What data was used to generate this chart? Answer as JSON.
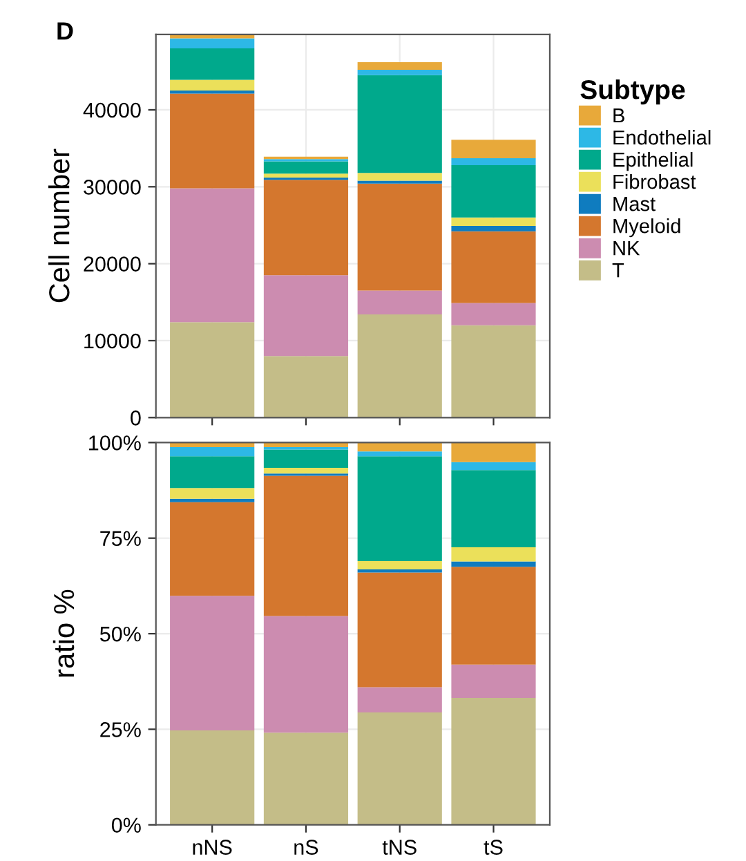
{
  "chart_data": [
    {
      "type": "bar",
      "stacked": true,
      "ylabel": "Cell number",
      "annotations": [
        "D"
      ],
      "categories": [
        null,
        null,
        null,
        null
      ],
      "legend_title": "Subtype",
      "legend": "right",
      "grid": true,
      "ylim": [
        0,
        49800
      ],
      "yticks": [
        0,
        10000,
        20000,
        30000,
        40000
      ],
      "series": [
        {
          "name": "T",
          "color": "#c4bd88",
          "values": [
            12400,
            8000,
            13400,
            12000
          ]
        },
        {
          "name": "NK",
          "color": "#cc8cb0",
          "values": [
            17400,
            10500,
            3100,
            2900
          ]
        },
        {
          "name": "Myeloid",
          "color": "#d4772e",
          "values": [
            12300,
            12400,
            13900,
            9300
          ]
        },
        {
          "name": "Mast",
          "color": "#0f7cbf",
          "values": [
            400,
            300,
            400,
            700
          ]
        },
        {
          "name": "Fibrobast",
          "color": "#ebe05a",
          "values": [
            1400,
            500,
            1000,
            1100
          ]
        },
        {
          "name": "Epithelial",
          "color": "#00a98c",
          "values": [
            4100,
            1600,
            12700,
            6800
          ]
        },
        {
          "name": "Endothelial",
          "color": "#2db8e6",
          "values": [
            1300,
            300,
            700,
            900
          ]
        },
        {
          "name": "B",
          "color": "#e8a93a",
          "values": [
            400,
            300,
            1000,
            2400
          ]
        }
      ]
    },
    {
      "type": "bar",
      "stacked": true,
      "ylabel": "ratio %",
      "categories": [
        "nNS",
        "nS",
        "tNS",
        "tS"
      ],
      "grid": true,
      "ylim": [
        0,
        100
      ],
      "yticks": [
        {
          "value": 0,
          "label": "0%"
        },
        {
          "value": 25,
          "label": "25%"
        },
        {
          "value": 50,
          "label": "50%"
        },
        {
          "value": 75,
          "label": "75%"
        },
        {
          "value": 100,
          "label": "100%"
        }
      ],
      "series": [
        {
          "color": "#c4bd88",
          "values": [
            24.7,
            24.1,
            29.4,
            33.2
          ]
        },
        {
          "color": "#cc8cb0",
          "values": [
            35.2,
            30.5,
            6.6,
            8.7
          ]
        },
        {
          "color": "#d4772e",
          "values": [
            24.5,
            36.7,
            30.0,
            25.6
          ]
        },
        {
          "color": "#0f7cbf",
          "values": [
            0.9,
            0.6,
            0.8,
            1.4
          ]
        },
        {
          "color": "#ebe05a",
          "values": [
            2.8,
            1.5,
            2.2,
            3.7
          ]
        },
        {
          "color": "#00a98c",
          "values": [
            8.3,
            4.8,
            27.4,
            20.2
          ]
        },
        {
          "color": "#2db8e6",
          "values": [
            2.4,
            0.6,
            1.3,
            2.1
          ]
        },
        {
          "color": "#e8a93a",
          "values": [
            1.2,
            1.2,
            2.3,
            5.1
          ]
        }
      ]
    }
  ]
}
